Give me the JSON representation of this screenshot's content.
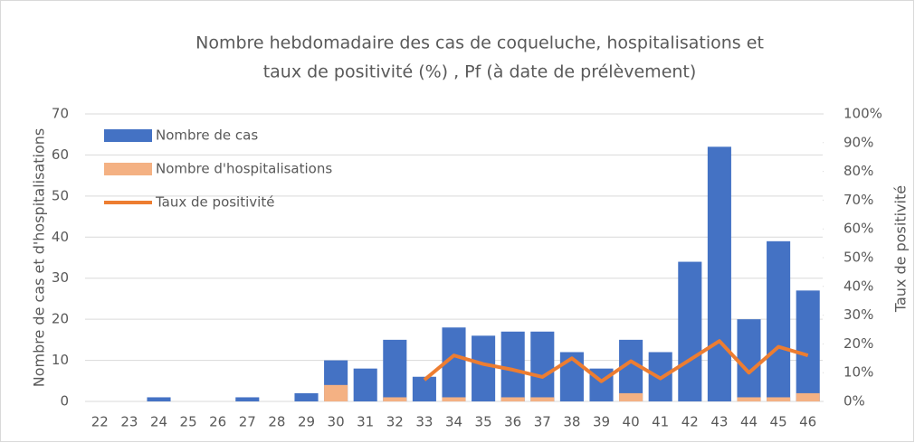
{
  "chart_data": {
    "type": "bar",
    "title": [
      "Nombre hebdomadaire des cas de coqueluche, hospitalisations et",
      "taux de positivité (%) , Pf (à date de prélèvement)"
    ],
    "y_label": "Nombre de cas et d'hospitalisations",
    "y2_label": "Taux de positivité",
    "categories": [
      "22",
      "23",
      "24",
      "25",
      "26",
      "27",
      "28",
      "29",
      "30",
      "31",
      "32",
      "33",
      "34",
      "35",
      "36",
      "37",
      "38",
      "39",
      "40",
      "41",
      "42",
      "43",
      "44",
      "45",
      "46"
    ],
    "series": [
      {
        "name": "Nombre de cas",
        "type": "bar",
        "color": "#4472c4",
        "values": [
          0,
          0,
          1,
          0,
          0,
          1,
          0,
          2,
          10,
          8,
          15,
          6,
          18,
          16,
          17,
          17,
          12,
          8,
          15,
          12,
          34,
          62,
          20,
          39,
          27
        ]
      },
      {
        "name": "Nombre d'hospitalisations",
        "type": "bar",
        "color": "#f4b183",
        "values": [
          0,
          0,
          0,
          0,
          0,
          0,
          0,
          0,
          4,
          0,
          1,
          0,
          1,
          0,
          1,
          1,
          0,
          0,
          2,
          0,
          0,
          0,
          1,
          1,
          2
        ]
      },
      {
        "name": "Taux de positivité",
        "type": "line",
        "color": "#ed7d31",
        "axis": "y2",
        "values": [
          null,
          null,
          null,
          null,
          null,
          null,
          null,
          null,
          null,
          null,
          null,
          7.5,
          16,
          13,
          11,
          8.5,
          15,
          7,
          14,
          8,
          14.5,
          21,
          10,
          19,
          16
        ]
      }
    ],
    "ylim": [
      0,
      70
    ],
    "yticks": [
      0,
      10,
      20,
      30,
      40,
      50,
      60,
      70
    ],
    "y2lim": [
      0,
      100
    ],
    "y2ticks": [
      {
        "value": 0,
        "label": "0%"
      },
      {
        "value": 10,
        "label": "10%"
      },
      {
        "value": 20,
        "label": "20%"
      },
      {
        "value": 30,
        "label": "30%"
      },
      {
        "value": 40,
        "label": "40%"
      },
      {
        "value": 50,
        "label": "50%"
      },
      {
        "value": 60,
        "label": "60%"
      },
      {
        "value": 70,
        "label": "70%"
      },
      {
        "value": 80,
        "label": "80%"
      },
      {
        "value": 90,
        "label": "90%"
      },
      {
        "value": 100,
        "label": "100%"
      }
    ],
    "grid": true,
    "legend": "top-left"
  }
}
